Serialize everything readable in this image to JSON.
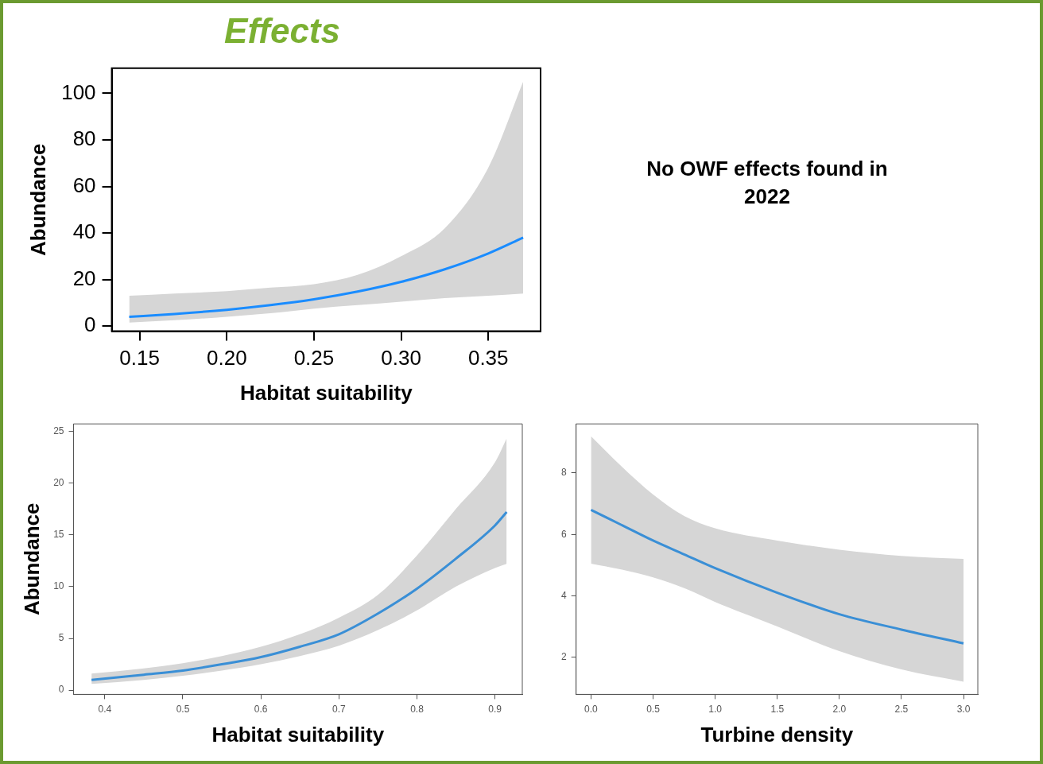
{
  "chart_data": [
    {
      "type": "line",
      "title": "Effects",
      "xlabel": "Habitat suitability",
      "ylabel": "Abundance",
      "xlim": [
        0.134,
        0.38
      ],
      "xticks": [
        0.15,
        {
          "value": 0.2,
          "label": "0.20"
        },
        0.25,
        {
          "value": 0.3,
          "label": "0.30"
        },
        0.35
      ],
      "ylim": [
        -2.2,
        110.8
      ],
      "yticks": [
        0,
        20,
        40,
        60,
        80,
        100
      ],
      "grid": false,
      "legend": false,
      "marker": "none",
      "line_style": "solid",
      "series": [
        {
          "color": "#1a8cff",
          "x": [
            0.144,
            0.17,
            0.2,
            0.225,
            0.25,
            0.275,
            0.3,
            0.325,
            0.35,
            0.37
          ],
          "values": [
            4,
            5.2,
            7,
            9,
            11.5,
            14.8,
            19,
            24.4,
            31.2,
            38
          ],
          "lower": [
            1.5,
            2.5,
            4,
            5.5,
            7.5,
            9,
            10.5,
            12,
            13,
            14
          ],
          "upper": [
            13,
            14,
            15,
            16.5,
            18,
            22,
            30,
            42,
            68,
            105
          ]
        }
      ]
    },
    {
      "type": "other",
      "annotations": [
        "No OWF effects found in 2022"
      ]
    },
    {
      "type": "line",
      "xlabel": "Habitat suitability",
      "ylabel": "Abundance",
      "xlim": [
        0.36,
        0.935
      ],
      "xticks": [
        0.4,
        0.5,
        0.6,
        0.7,
        0.8,
        0.9
      ],
      "ylim": [
        -0.4,
        25.7
      ],
      "yticks": [
        0,
        5,
        10,
        15,
        20,
        25
      ],
      "grid": false,
      "legend": false,
      "marker": "none",
      "line_style": "solid",
      "series": [
        {
          "color": "#3a8fd6",
          "x": [
            0.383,
            0.45,
            0.5,
            0.55,
            0.6,
            0.65,
            0.7,
            0.75,
            0.8,
            0.85,
            0.9,
            0.915
          ],
          "values": [
            1,
            1.5,
            1.9,
            2.5,
            3.2,
            4.2,
            5.4,
            7.4,
            9.8,
            12.7,
            15.9,
            17.2
          ],
          "lower": [
            0.6,
            1,
            1.4,
            1.9,
            2.5,
            3.3,
            4.3,
            5.8,
            7.7,
            10,
            11.8,
            12.2
          ],
          "upper": [
            1.6,
            2.1,
            2.6,
            3.3,
            4.2,
            5.4,
            7,
            9.2,
            13,
            17.5,
            22,
            24.3
          ]
        }
      ]
    },
    {
      "type": "line",
      "xlabel": "Turbine density",
      "xlim": [
        -0.12,
        3.115
      ],
      "xticks": [
        {
          "value": 0,
          "label": "0.0"
        },
        0.5,
        {
          "value": 1,
          "label": "1.0"
        },
        1.5,
        {
          "value": 2,
          "label": "2.0"
        },
        2.5,
        {
          "value": 3,
          "label": "3.0"
        }
      ],
      "ylim": [
        0.79,
        9.6
      ],
      "yticks": [
        2,
        4,
        6,
        8
      ],
      "grid": false,
      "legend": false,
      "marker": "none",
      "line_style": "solid",
      "series": [
        {
          "color": "#3a8fd6",
          "x": [
            0,
            0.25,
            0.5,
            0.75,
            1,
            1.5,
            2,
            2.5,
            3
          ],
          "values": [
            6.8,
            6.3,
            5.8,
            5.35,
            4.9,
            4.1,
            3.4,
            2.9,
            2.45
          ],
          "lower": [
            5.05,
            4.85,
            4.6,
            4.25,
            3.8,
            3,
            2.2,
            1.6,
            1.2
          ],
          "upper": [
            9.2,
            8.2,
            7.3,
            6.6,
            6.2,
            5.8,
            5.5,
            5.3,
            5.2
          ]
        }
      ]
    }
  ]
}
